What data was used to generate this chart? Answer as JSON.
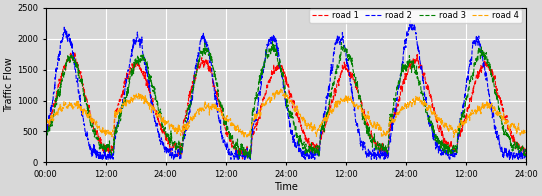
{
  "title": "",
  "xlabel": "Time",
  "ylabel": "Traffic Flow",
  "ylim": [
    0,
    2500
  ],
  "yticks": [
    0,
    500,
    1000,
    1500,
    2000,
    2500
  ],
  "xtick_labels": [
    "00:00",
    "12:00",
    "24:00",
    "12:00",
    "24:00",
    "12:00",
    "24:00",
    "12:00",
    "24:00"
  ],
  "legend_labels": [
    "road 1",
    "road 2",
    "road 3",
    "road 4"
  ],
  "colors": [
    "red",
    "blue",
    "green",
    "orange"
  ],
  "linestyle": "--",
  "linewidth": 0.8,
  "background_color": "#d8d8d8",
  "grid_color": "white",
  "num_points": 2016,
  "period": 288,
  "num_days": 7
}
